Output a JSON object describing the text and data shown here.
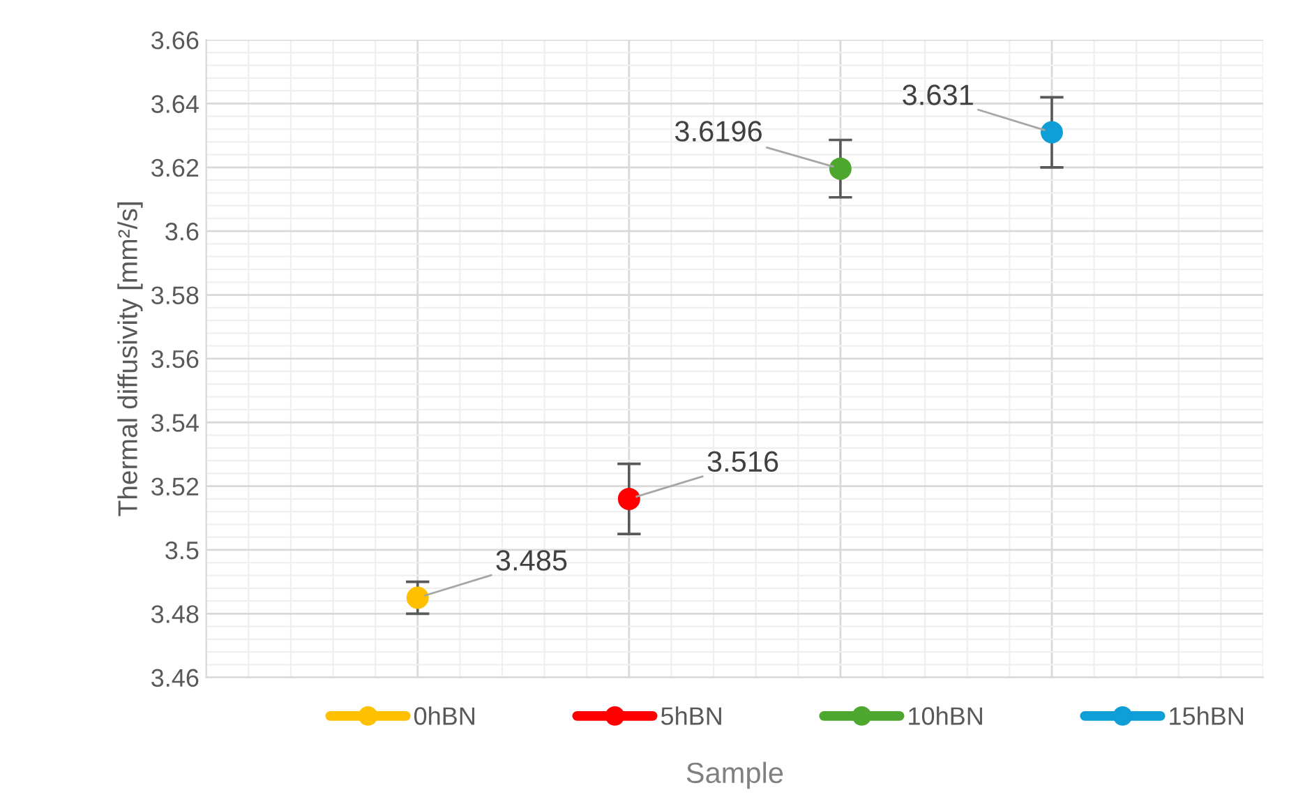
{
  "chart_data": {
    "type": "scatter",
    "xlabel": "Sample",
    "ylabel": "Thermal diffusivity [mm²/s]",
    "categories": [
      null,
      null,
      null,
      null
    ],
    "series": [
      {
        "name": "0hBN",
        "color": "#ffc000",
        "values": [
          3.485,
          null,
          null,
          null
        ],
        "errors": [
          0.005,
          null,
          null,
          null
        ],
        "value_labels": [
          "3.485",
          null,
          null,
          null
        ]
      },
      {
        "name": "5hBN",
        "color": "#ff0000",
        "values": [
          null,
          3.516,
          null,
          null
        ],
        "errors": [
          null,
          0.011,
          null,
          null
        ],
        "value_labels": [
          null,
          "3.516",
          null,
          null
        ]
      },
      {
        "name": "10hBN",
        "color": "#4ea72e",
        "values": [
          null,
          null,
          3.6196,
          null
        ],
        "errors": [
          null,
          null,
          0.009,
          null
        ],
        "value_labels": [
          null,
          null,
          "3.6196",
          null
        ]
      },
      {
        "name": "15hBN",
        "color": "#0f9ed5",
        "values": [
          null,
          null,
          null,
          3.631
        ],
        "errors": [
          null,
          null,
          null,
          0.011
        ],
        "value_labels": [
          null,
          null,
          null,
          "3.631"
        ]
      }
    ],
    "ylim": [
      3.46,
      3.66
    ],
    "yticks": [
      3.46,
      3.48,
      3.5,
      3.52,
      3.54,
      3.56,
      3.58,
      3.6,
      3.62,
      3.64,
      3.66
    ],
    "grid": true,
    "legend": "bottom",
    "marker": "circle"
  }
}
